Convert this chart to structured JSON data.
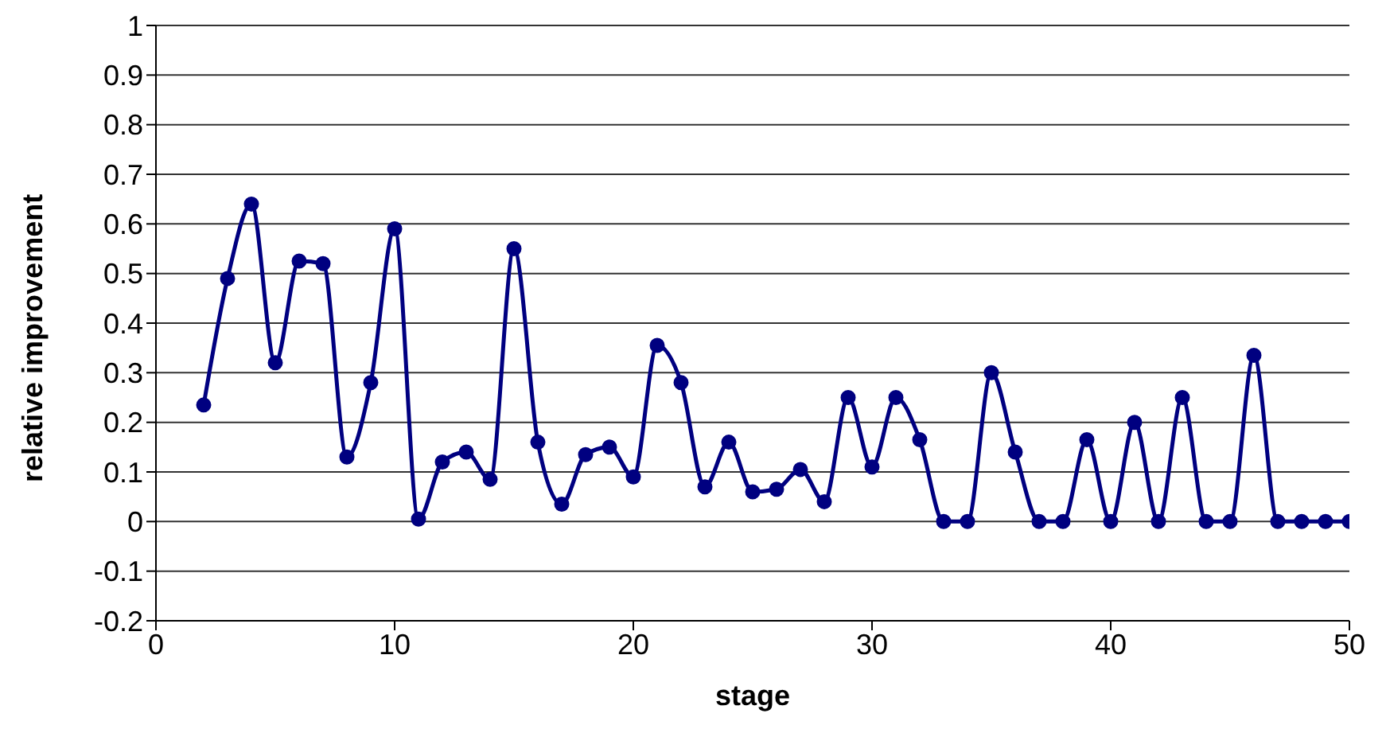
{
  "chart_data": {
    "type": "line",
    "xlabel": "stage",
    "ylabel": "relative improvement",
    "x": [
      2,
      3,
      4,
      5,
      6,
      7,
      8,
      9,
      10,
      11,
      12,
      13,
      14,
      15,
      16,
      17,
      18,
      19,
      20,
      21,
      22,
      23,
      24,
      25,
      26,
      27,
      28,
      29,
      30,
      31,
      32,
      33,
      34,
      35,
      36,
      37,
      38,
      39,
      40,
      41,
      42,
      43,
      44,
      45,
      46,
      47,
      48,
      49,
      50
    ],
    "series": [
      {
        "color": "#000080",
        "values": [
          0.235,
          0.49,
          0.64,
          0.32,
          0.525,
          0.52,
          0.13,
          0.28,
          0.59,
          0.005,
          0.12,
          0.14,
          0.085,
          0.55,
          0.16,
          0.035,
          0.135,
          0.15,
          0.09,
          0.355,
          0.28,
          0.07,
          0.16,
          0.06,
          0.065,
          0.105,
          0.04,
          0.25,
          0.11,
          0.25,
          0.165,
          0,
          0,
          0.3,
          0.14,
          0,
          0,
          0.165,
          0,
          0.2,
          0,
          0.25,
          0,
          0,
          0.335,
          0,
          0,
          0,
          0
        ]
      }
    ],
    "xlim": [
      0,
      50
    ],
    "xticks": [
      0,
      10,
      20,
      30,
      40,
      50
    ],
    "ylim": [
      -0.2,
      1
    ],
    "yticks": [
      -0.2,
      -0.1,
      0,
      0.1,
      0.2,
      0.3,
      0.4,
      0.5,
      0.6,
      0.7,
      0.8,
      0.9,
      1
    ],
    "grid": "y",
    "marker": "circle",
    "line_style": "solid"
  }
}
